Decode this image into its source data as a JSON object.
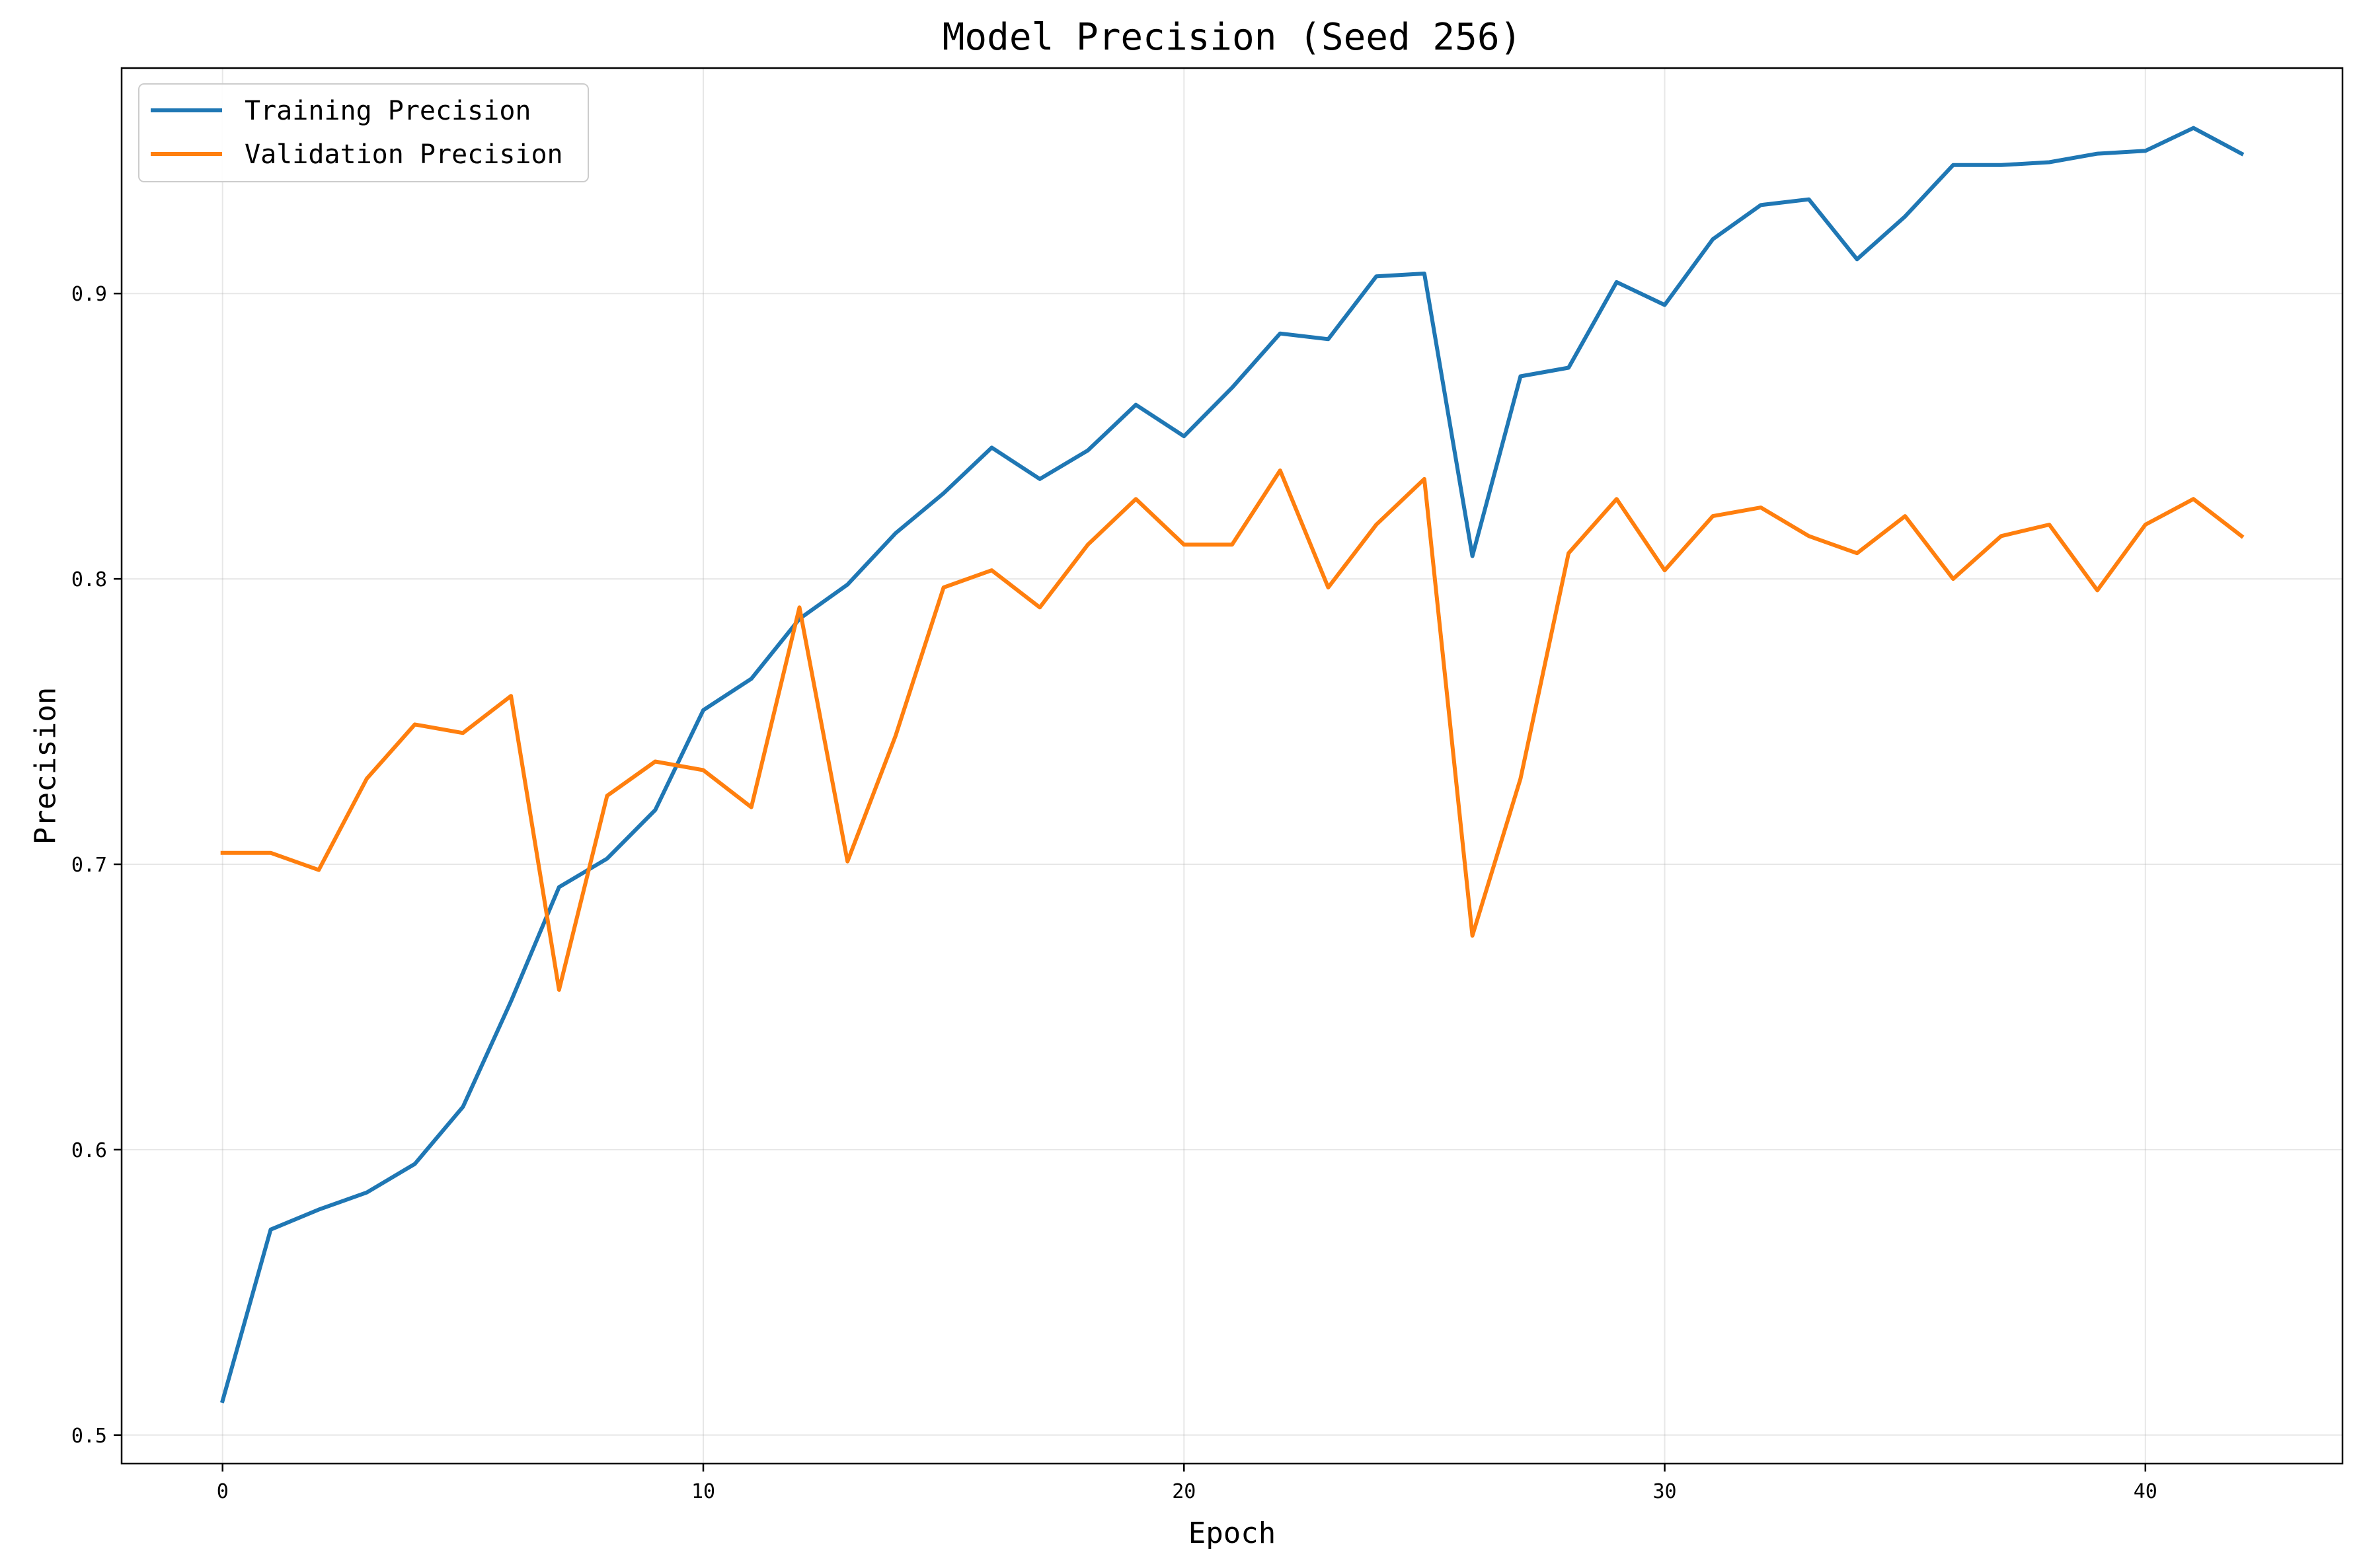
{
  "chart_data": {
    "type": "line",
    "title": "Model Precision (Seed 256)",
    "xlabel": "Epoch",
    "ylabel": "Precision",
    "xlim": [
      -2.1,
      44.1
    ],
    "ylim": [
      0.49,
      0.979
    ],
    "xticks": [
      0,
      10,
      20,
      30,
      40
    ],
    "xtick_labels": [
      "0",
      "10",
      "20",
      "30",
      "40"
    ],
    "yticks": [
      0.5,
      0.6,
      0.7,
      0.8,
      0.9
    ],
    "ytick_labels": [
      "0.5",
      "0.6",
      "0.7",
      "0.8",
      "0.9"
    ],
    "grid": true,
    "legend_position": "top-left",
    "x": [
      0,
      1,
      2,
      3,
      4,
      5,
      6,
      7,
      8,
      9,
      10,
      11,
      12,
      13,
      14,
      15,
      16,
      17,
      18,
      19,
      20,
      21,
      22,
      23,
      24,
      25,
      26,
      27,
      28,
      29,
      30,
      31,
      32,
      33,
      34,
      35,
      36,
      37,
      38,
      39,
      40,
      41,
      42
    ],
    "series": [
      {
        "name": "Training Precision",
        "color": "#1f77b4",
        "values": [
          0.512,
          0.572,
          0.579,
          0.585,
          0.595,
          0.615,
          0.652,
          0.692,
          0.702,
          0.719,
          0.754,
          0.765,
          0.786,
          0.798,
          0.816,
          0.83,
          0.846,
          0.835,
          0.845,
          0.861,
          0.85,
          0.867,
          0.886,
          0.884,
          0.906,
          0.907,
          0.808,
          0.871,
          0.874,
          0.904,
          0.896,
          0.919,
          0.931,
          0.933,
          0.912,
          0.927,
          0.945,
          0.945,
          0.946,
          0.949,
          0.95,
          0.958,
          0.949
        ]
      },
      {
        "name": "Validation Precision",
        "color": "#ff7f0e",
        "values": [
          0.704,
          0.704,
          0.698,
          0.73,
          0.749,
          0.746,
          0.759,
          0.656,
          0.724,
          0.736,
          0.733,
          0.72,
          0.79,
          0.701,
          0.745,
          0.797,
          0.803,
          0.79,
          0.812,
          0.828,
          0.812,
          0.812,
          0.838,
          0.797,
          0.819,
          0.835,
          0.675,
          0.73,
          0.809,
          0.828,
          0.803,
          0.822,
          0.825,
          0.815,
          0.809,
          0.822,
          0.8,
          0.815,
          0.819,
          0.796,
          0.819,
          0.828,
          0.815
        ]
      }
    ]
  }
}
